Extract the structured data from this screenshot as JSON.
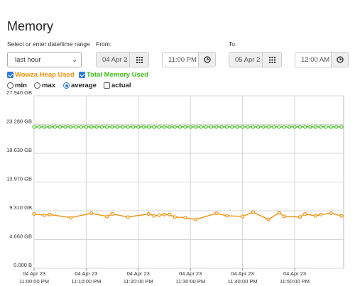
{
  "page": {
    "title": "Memory"
  },
  "range": {
    "label": "Select or enter date/time range",
    "selected": "last hour"
  },
  "from": {
    "label": "From:",
    "date": "04 Apr 2",
    "time": "11:00 PM"
  },
  "to": {
    "label": "To:",
    "date": "05 Apr 2",
    "time": "12:00 AM"
  },
  "series_toggles": [
    {
      "label": "Wowza Heap Used",
      "checked": true,
      "color": "#f0900a"
    },
    {
      "label": "Total Memory Used",
      "checked": true,
      "color": "#3dbe17"
    }
  ],
  "modes": [
    {
      "label": "min",
      "selected": false
    },
    {
      "label": "max",
      "selected": false
    },
    {
      "label": "average",
      "selected": true
    },
    {
      "label": "actual",
      "checked": false
    }
  ],
  "icons": {
    "calendar": "calendar-grid-icon",
    "clock": "clock-icon"
  },
  "chart_data": {
    "type": "line",
    "ylim": [
      0,
      27.94
    ],
    "yticks": [
      "27.940 GB",
      "23.280 GB",
      "18.630 GB",
      "13.970 GB",
      "9.310 GB",
      "4.660 GB",
      "0.000 B"
    ],
    "ytick_values": [
      27.94,
      23.28,
      18.63,
      13.97,
      9.31,
      4.66,
      0
    ],
    "xlim": [
      0,
      59.4
    ],
    "xticks": [
      {
        "date": "04 Apr 23",
        "time": "11:00:00 PM",
        "minute": 0
      },
      {
        "date": "04 Apr 23",
        "time": "11:10:00 PM",
        "minute": 10
      },
      {
        "date": "04 Apr 23",
        "time": "11:20:00 PM",
        "minute": 20
      },
      {
        "date": "04 Apr 23",
        "time": "11:30:00 PM",
        "minute": 30
      },
      {
        "date": "04 Apr 23",
        "time": "11:40:00 PM",
        "minute": 40
      },
      {
        "date": "04 Apr 23",
        "time": "11:50:00 PM",
        "minute": 50
      }
    ],
    "grid": true,
    "series": [
      {
        "name": "Total Memory Used",
        "color": "#3dbe17",
        "x": [
          0,
          1,
          2,
          3,
          4,
          5,
          6,
          7,
          8,
          9,
          10,
          11,
          12,
          13,
          14,
          15,
          16,
          17,
          18,
          19,
          20,
          21,
          22,
          23,
          24,
          25,
          26,
          27,
          28,
          29,
          30,
          31,
          32,
          33,
          34,
          35,
          36,
          37,
          38,
          39,
          40,
          41,
          42,
          43,
          44,
          45,
          46,
          47,
          48,
          49,
          50,
          51,
          52,
          53,
          54,
          55,
          56,
          57,
          58,
          59
        ],
        "y": [
          22.9,
          22.9,
          22.9,
          22.9,
          22.9,
          22.9,
          22.9,
          22.9,
          22.9,
          22.9,
          22.9,
          22.9,
          22.9,
          22.9,
          22.9,
          22.9,
          22.9,
          22.9,
          22.9,
          22.9,
          22.9,
          22.9,
          22.9,
          22.9,
          22.9,
          22.9,
          22.9,
          22.9,
          22.9,
          22.9,
          22.9,
          22.9,
          22.9,
          22.9,
          22.9,
          22.9,
          22.9,
          22.9,
          22.9,
          22.9,
          22.9,
          22.9,
          22.9,
          22.9,
          22.9,
          22.9,
          22.9,
          22.9,
          22.9,
          22.9,
          22.9,
          22.9,
          22.9,
          22.9,
          22.9,
          22.9,
          22.9,
          22.9,
          22.9,
          22.9
        ]
      },
      {
        "name": "Wowza Heap Used",
        "color": "#f0900a",
        "x": [
          0,
          2,
          3,
          7,
          11,
          14,
          15,
          18,
          22,
          23,
          24,
          25,
          26,
          27,
          29,
          31,
          35,
          37,
          40,
          42,
          45,
          47,
          48,
          51,
          52,
          54,
          55,
          57,
          59
        ],
        "y": [
          8.8,
          8.6,
          8.7,
          8.2,
          8.9,
          8.4,
          8.8,
          8.3,
          8.8,
          8.5,
          8.6,
          8.7,
          8.7,
          8.3,
          8.2,
          7.9,
          8.9,
          8.5,
          8.4,
          9.1,
          7.9,
          9.0,
          8.4,
          8.3,
          8.8,
          8.5,
          8.7,
          8.9,
          8.5
        ]
      }
    ]
  }
}
